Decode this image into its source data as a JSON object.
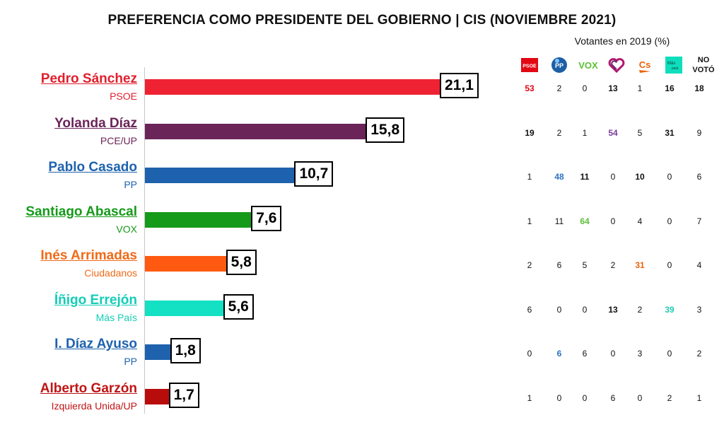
{
  "title": "PREFERENCIA COMO PRESIDENTE DEL GOBIERNO |  CIS (NOVIEMBRE 2021)",
  "subtitle": "Votantes en 2019 (%)",
  "parties_header": [
    {
      "name": "PSOE",
      "icon": "psoe-logo-icon",
      "color": "#e30613"
    },
    {
      "name": "PP",
      "icon": "pp-logo-icon",
      "color": "#1d5fa6"
    },
    {
      "name": "VOX",
      "icon": "vox-logo-icon",
      "color": "#5bc035"
    },
    {
      "name": "UP",
      "icon": "up-heart-logo-icon",
      "color": "#6b2c6e"
    },
    {
      "name": "Cs",
      "icon": "cs-logo-icon",
      "color": "#eb6109"
    },
    {
      "name": "Más País",
      "icon": "mas-pais-logo-icon",
      "color": "#0fdebd"
    },
    {
      "name": "NO VOTÓ",
      "icon": "",
      "color": "#111111"
    }
  ],
  "chart_data": {
    "type": "bar",
    "orientation": "horizontal",
    "categories": [
      "Pedro Sánchez",
      "Yolanda Díaz",
      "Pablo Casado",
      "Santiago Abascal",
      "Inés Arrimadas",
      "Íñigo Errejón",
      "I. Díaz Ayuso",
      "Alberto Garzón"
    ],
    "parties": [
      "PSOE",
      "PCE/UP",
      "PP",
      "VOX",
      "Ciudadanos",
      "Más País",
      "PP",
      "Izquierda Unida/UP"
    ],
    "values": [
      21.1,
      15.8,
      10.7,
      7.6,
      5.8,
      5.6,
      1.8,
      1.7
    ],
    "value_labels": [
      "21,1",
      "15,8",
      "10,7",
      "7,6",
      "5,8",
      "5,6",
      "1,8",
      "1,7"
    ],
    "colors": [
      "#ee2233",
      "#6b2458",
      "#1e62ad",
      "#159a1a",
      "#ff5a10",
      "#14e0c4",
      "#1e62ad",
      "#b80c0c"
    ],
    "name_colors": [
      "#e0202d",
      "#6b2458",
      "#1e62ad",
      "#159a1a",
      "#f06a18",
      "#13cdb6",
      "#1e62ad",
      "#c01414"
    ],
    "xlim": [
      0,
      21.1
    ],
    "grid": false,
    "legend": "none"
  },
  "table": {
    "rows": [
      [
        "53",
        "2",
        "0",
        "13",
        "1",
        "16",
        "18"
      ],
      [
        "19",
        "2",
        "1",
        "54",
        "5",
        "31",
        "9"
      ],
      [
        "1",
        "48",
        "11",
        "0",
        "10",
        "0",
        "6"
      ],
      [
        "1",
        "11",
        "64",
        "0",
        "4",
        "0",
        "7"
      ],
      [
        "2",
        "6",
        "5",
        "2",
        "31",
        "0",
        "4"
      ],
      [
        "6",
        "0",
        "0",
        "13",
        "2",
        "39",
        "3"
      ],
      [
        "0",
        "6",
        "6",
        "0",
        "3",
        "0",
        "2"
      ],
      [
        "1",
        "0",
        "0",
        "6",
        "0",
        "2",
        "1"
      ]
    ],
    "highlight_color": [
      [
        "#e30613",
        "",
        "",
        "",
        "",
        "",
        ""
      ],
      [
        "",
        "",
        "",
        "#7a3c9a",
        "",
        "",
        ""
      ],
      [
        "",
        "#2b73c2",
        "",
        "",
        "",
        "",
        ""
      ],
      [
        "",
        "",
        "#5bc035",
        "",
        "",
        "",
        ""
      ],
      [
        "",
        "",
        "",
        "",
        "#eb6109",
        "",
        ""
      ],
      [
        "",
        "",
        "",
        "",
        "",
        "#22c9b2",
        ""
      ],
      [
        "",
        "#2b73c2",
        "",
        "",
        "",
        "",
        ""
      ],
      [
        "",
        "",
        "",
        "",
        "",
        "",
        ""
      ]
    ],
    "bold": [
      [
        true,
        false,
        false,
        true,
        false,
        true,
        true
      ],
      [
        true,
        false,
        false,
        true,
        false,
        true,
        false
      ],
      [
        false,
        true,
        true,
        false,
        true,
        false,
        false
      ],
      [
        false,
        false,
        true,
        false,
        false,
        false,
        false
      ],
      [
        false,
        false,
        false,
        false,
        true,
        false,
        false
      ],
      [
        false,
        false,
        false,
        true,
        false,
        true,
        false
      ],
      [
        false,
        true,
        false,
        false,
        false,
        false,
        false
      ],
      [
        false,
        false,
        false,
        false,
        false,
        false,
        false
      ]
    ]
  }
}
